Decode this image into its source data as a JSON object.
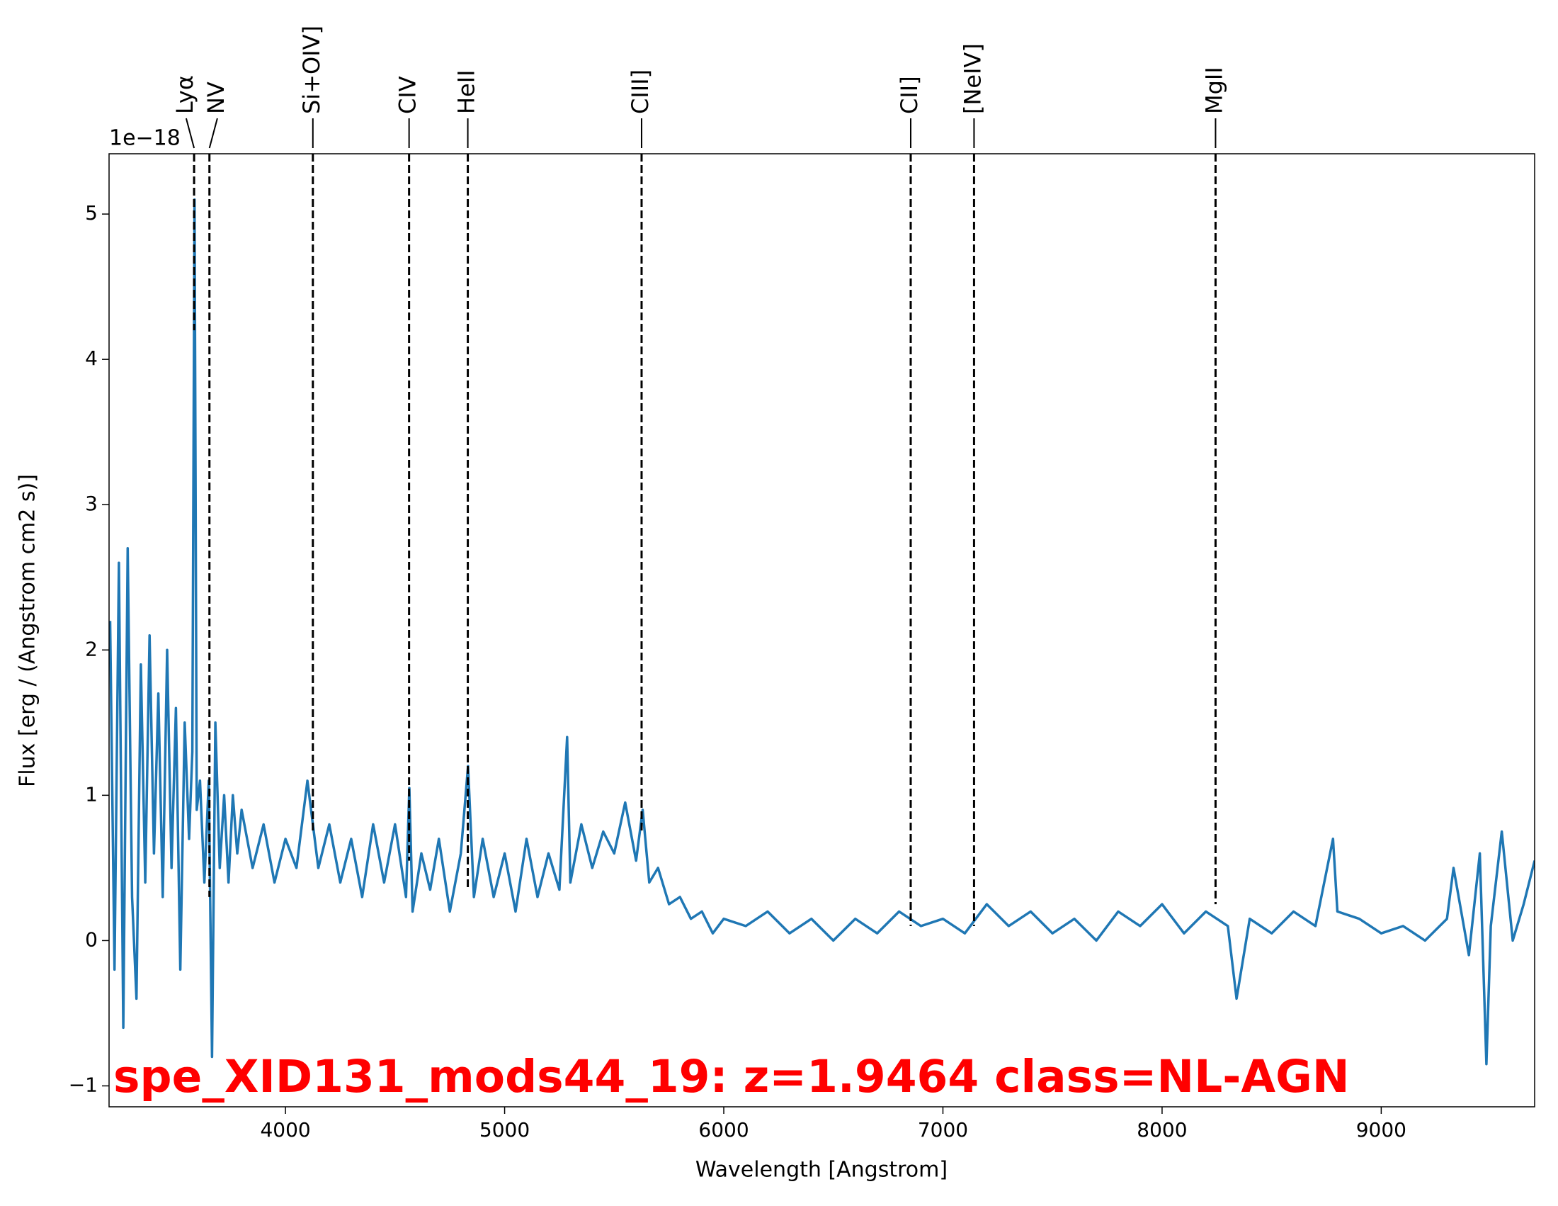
{
  "chart_data": {
    "type": "line",
    "title": "spe_XID131_mods44_19: z=1.9464 class=NL-AGN",
    "title_color": "#ff0000",
    "x_label": "Wavelength [Angstrom]",
    "y_label": "Flux [erg / (Angstrom cm2 s)]",
    "y_offset_label": "1e−18",
    "color": "#1f77b4",
    "x": [
      3200,
      3220,
      3240,
      3260,
      3280,
      3300,
      3320,
      3340,
      3360,
      3380,
      3400,
      3420,
      3440,
      3460,
      3480,
      3500,
      3520,
      3540,
      3560,
      3575,
      3585,
      3595,
      3610,
      3630,
      3650,
      3665,
      3680,
      3700,
      3720,
      3740,
      3760,
      3780,
      3800,
      3850,
      3900,
      3950,
      4000,
      4050,
      4100,
      4150,
      4200,
      4250,
      4300,
      4350,
      4400,
      4450,
      4500,
      4550,
      4565,
      4580,
      4620,
      4660,
      4700,
      4750,
      4800,
      4833,
      4860,
      4900,
      4950,
      5000,
      5050,
      5100,
      5150,
      5200,
      5250,
      5285,
      5300,
      5350,
      5400,
      5450,
      5500,
      5550,
      5600,
      5630,
      5660,
      5700,
      5750,
      5800,
      5850,
      5900,
      5950,
      6000,
      6100,
      6200,
      6300,
      6400,
      6500,
      6600,
      6700,
      6800,
      6900,
      7000,
      7100,
      7200,
      7300,
      7400,
      7500,
      7600,
      7700,
      7800,
      7900,
      8000,
      8100,
      8200,
      8300,
      8340,
      8400,
      8500,
      8600,
      8700,
      8780,
      8800,
      8900,
      9000,
      9100,
      9200,
      9300,
      9330,
      9400,
      9450,
      9480,
      9500,
      9550,
      9600,
      9650,
      9700
    ],
    "values": [
      2.2,
      -0.2,
      2.6,
      -0.6,
      2.7,
      0.3,
      -0.4,
      1.9,
      0.4,
      2.1,
      0.6,
      1.7,
      0.3,
      2.0,
      0.5,
      1.6,
      -0.2,
      1.5,
      0.7,
      1.3,
      5.1,
      0.9,
      1.1,
      0.4,
      1.1,
      -0.8,
      1.5,
      0.5,
      1.0,
      0.4,
      1.0,
      0.6,
      0.9,
      0.5,
      0.8,
      0.4,
      0.7,
      0.5,
      1.1,
      0.5,
      0.8,
      0.4,
      0.7,
      0.3,
      0.8,
      0.4,
      0.8,
      0.3,
      1.05,
      0.2,
      0.6,
      0.35,
      0.7,
      0.2,
      0.6,
      1.2,
      0.3,
      0.7,
      0.3,
      0.6,
      0.2,
      0.7,
      0.3,
      0.6,
      0.35,
      1.4,
      0.4,
      0.8,
      0.5,
      0.75,
      0.6,
      0.95,
      0.55,
      0.9,
      0.4,
      0.5,
      0.25,
      0.3,
      0.15,
      0.2,
      0.05,
      0.15,
      0.1,
      0.2,
      0.05,
      0.15,
      0.0,
      0.15,
      0.05,
      0.2,
      0.1,
      0.15,
      0.05,
      0.25,
      0.1,
      0.2,
      0.05,
      0.15,
      0.0,
      0.2,
      0.1,
      0.25,
      0.05,
      0.2,
      0.1,
      -0.4,
      0.15,
      0.05,
      0.2,
      0.1,
      0.7,
      0.2,
      0.15,
      0.05,
      0.1,
      0.0,
      0.15,
      0.5,
      -0.1,
      0.6,
      -0.85,
      0.1,
      0.75,
      0.0,
      0.25,
      0.55
    ],
    "xlim": [
      3195,
      9700
    ],
    "ylim": [
      -1.144,
      5.415
    ],
    "xticks": [
      4000,
      5000,
      6000,
      7000,
      8000,
      9000
    ],
    "yticks": [
      {
        "value": -1,
        "label": "−1"
      },
      0,
      1,
      2,
      3,
      4,
      5
    ],
    "grid": false,
    "lines": [
      {
        "label": "Lyα",
        "x": 3583,
        "ymin": 4.2
      },
      {
        "label": "NV",
        "x": 3653,
        "ymin": 0.3
      },
      {
        "label": "Si+OIV]",
        "x": 4125,
        "ymin": 0.75
      },
      {
        "label": "CIV",
        "x": 4564,
        "ymin": 0.55
      },
      {
        "label": "HeII",
        "x": 4832,
        "ymin": 0.35
      },
      {
        "label": "CIII]",
        "x": 5625,
        "ymin": 0.75
      },
      {
        "label": "CII]",
        "x": 6853,
        "ymin": 0.1
      },
      {
        "label": "[NeIV]",
        "x": 7142,
        "ymin": 0.1
      },
      {
        "label": "MgII",
        "x": 8244,
        "ymin": 0.25
      }
    ]
  }
}
